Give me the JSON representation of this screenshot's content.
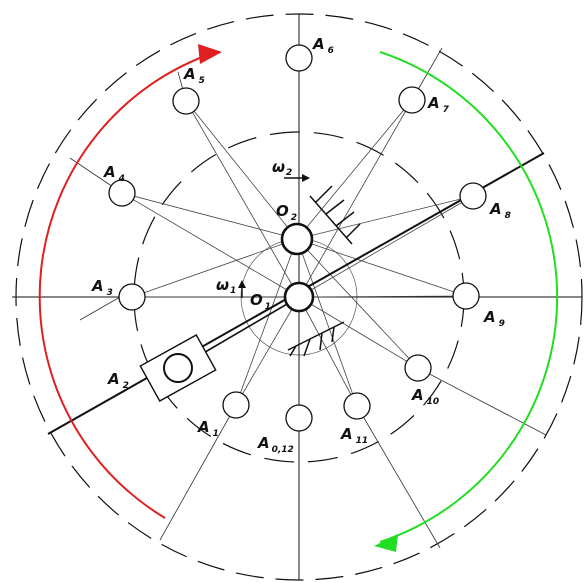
{
  "points": [
    {
      "name": "A",
      "sub": "0,12"
    },
    {
      "name": "A",
      "sub": "1"
    },
    {
      "name": "A",
      "sub": "2"
    },
    {
      "name": "A",
      "sub": "3"
    },
    {
      "name": "A",
      "sub": "4"
    },
    {
      "name": "A",
      "sub": "5"
    },
    {
      "name": "A",
      "sub": "6"
    },
    {
      "name": "A",
      "sub": "7"
    },
    {
      "name": "A",
      "sub": "8"
    },
    {
      "name": "A",
      "sub": "9"
    },
    {
      "name": "A",
      "sub": "10"
    },
    {
      "name": "A",
      "sub": "11"
    }
  ],
  "centers": {
    "o1": {
      "name": "O",
      "sub": "1"
    },
    "o2": {
      "name": "O",
      "sub": "2"
    }
  },
  "omegas": {
    "w1": {
      "name": "ω",
      "sub": "1"
    },
    "w2": {
      "name": "ω",
      "sub": "2"
    }
  },
  "colors": {
    "stroke": "#111111",
    "thin": "#555555",
    "arc_ccw": "#e02020",
    "arc_cw": "#22dd22"
  }
}
